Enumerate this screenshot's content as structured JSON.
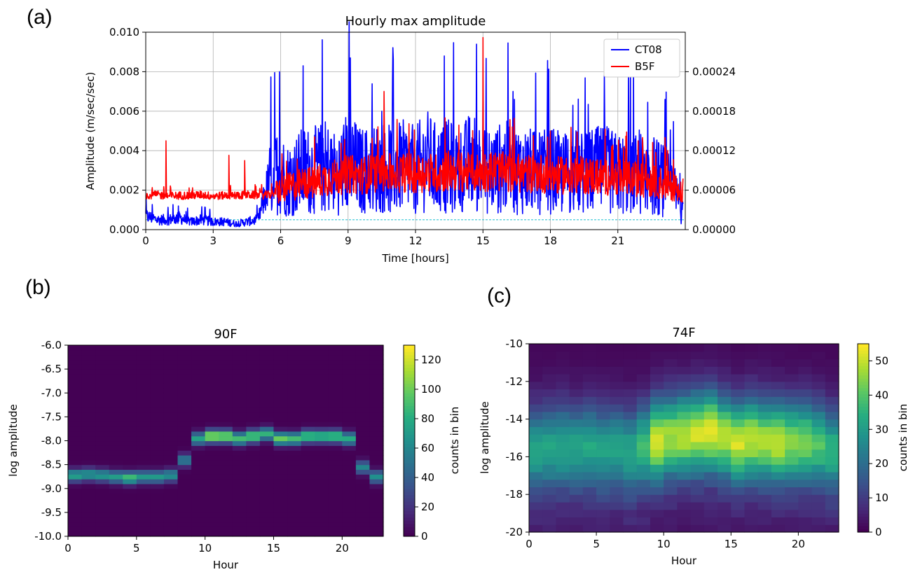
{
  "panels": {
    "a": "(a)",
    "b": "(b)",
    "c": "(c)"
  },
  "chart_data": [
    {
      "type": "line",
      "title": "Hourly max amplitude",
      "xlabel": "Time [hours]",
      "ylabel": "Amplitude (m/sec/sec)",
      "xlim": [
        0,
        24
      ],
      "ylim": [
        0,
        0.01
      ],
      "y2lim": [
        0,
        0.0003
      ],
      "xticks": [
        "0",
        "3",
        "6",
        "9",
        "12",
        "15",
        "18",
        "21"
      ],
      "yticks": [
        "0.000",
        "0.002",
        "0.004",
        "0.006",
        "0.008",
        "0.010"
      ],
      "y2ticks": [
        "0.00000",
        "0.00006",
        "0.00012",
        "0.00018",
        "0.00024"
      ],
      "grid": true,
      "legend": "top-right",
      "threshold_y": 0.0005,
      "series": [
        {
          "name": "CT08",
          "axis": "left",
          "color": "#0000ff",
          "x": [
            0,
            0.5,
            1,
            1.5,
            2,
            2.5,
            3,
            3.5,
            4,
            4.5,
            5,
            5.5,
            5.9,
            6.3,
            7,
            7.5,
            8,
            8.5,
            9,
            9.5,
            10,
            10.5,
            11,
            11.5,
            12,
            12.5,
            13,
            13.5,
            14,
            14.5,
            15,
            15.5,
            16,
            16.5,
            17,
            17.5,
            18,
            18.5,
            19,
            19.5,
            20,
            20.5,
            21,
            21.5,
            22,
            22.5,
            23,
            23.5,
            23.9
          ],
          "y": [
            0.0007,
            0.0005,
            0.0005,
            0.0006,
            0.0004,
            0.0005,
            0.0004,
            0.0004,
            0.0003,
            0.0004,
            0.0005,
            0.0025,
            0.003,
            0.0025,
            0.003,
            0.003,
            0.0032,
            0.0028,
            0.0035,
            0.003,
            0.003,
            0.0032,
            0.003,
            0.0032,
            0.003,
            0.0035,
            0.003,
            0.0032,
            0.003,
            0.0035,
            0.003,
            0.003,
            0.0032,
            0.003,
            0.003,
            0.0028,
            0.003,
            0.0028,
            0.003,
            0.0028,
            0.003,
            0.003,
            0.0028,
            0.0028,
            0.003,
            0.0028,
            0.0025,
            0.002,
            0.0008
          ],
          "spikes": [
            [
              5.95,
              0.008
            ],
            [
              7.0,
              0.0083
            ],
            [
              9.1,
              0.0087
            ],
            [
              10.5,
              0.006
            ],
            [
              15.0,
              0.0065
            ],
            [
              16.4,
              0.0066
            ],
            [
              19.0,
              0.0063
            ],
            [
              23.1,
              0.0066
            ]
          ]
        },
        {
          "name": "B5F",
          "axis": "right",
          "color": "#ff0000",
          "x": [
            0,
            0.5,
            1,
            1.5,
            2,
            2.5,
            3,
            3.5,
            4,
            4.5,
            5,
            5.5,
            6,
            6.5,
            7,
            7.5,
            8,
            8.5,
            9,
            9.5,
            10,
            10.5,
            11,
            11.5,
            12,
            12.5,
            13,
            13.5,
            14,
            14.5,
            15,
            15.5,
            16,
            16.5,
            17,
            17.5,
            18,
            18.5,
            19,
            19.5,
            20,
            20.5,
            21,
            21.5,
            22,
            22.5,
            23,
            23.5,
            23.9
          ],
          "y": [
            5.2e-05,
            5.3e-05,
            5.1e-05,
            5.2e-05,
            5.2e-05,
            5.3e-05,
            5.1e-05,
            5.2e-05,
            5.2e-05,
            5.3e-05,
            5.2e-05,
            5.3e-05,
            6e-05,
            6.6e-05,
            7e-05,
            7.2e-05,
            7.8e-05,
            8e-05,
            8.5e-05,
            8.2e-05,
            8.5e-05,
            8.8e-05,
            8.5e-05,
            8.7e-05,
            8.5e-05,
            8.8e-05,
            8.5e-05,
            9e-05,
            8.8e-05,
            8.6e-05,
            8.8e-05,
            9e-05,
            8.7e-05,
            8.6e-05,
            8.5e-05,
            8.6e-05,
            8.3e-05,
            8.2e-05,
            8.5e-05,
            8.2e-05,
            8.2e-05,
            8e-05,
            8e-05,
            7.8e-05,
            7.6e-05,
            7.4e-05,
            7e-05,
            6.6e-05,
            6e-05
          ],
          "spikes": [
            [
              0.9,
              0.000135
            ],
            [
              3.7,
              0.000113
            ],
            [
              4.4,
              0.000105
            ],
            [
              10.6,
              0.00021
            ],
            [
              15.0,
              0.000292
            ],
            [
              18.0,
              0.00015
            ],
            [
              22.1,
              0.00014
            ],
            [
              23.1,
              0.00014
            ]
          ]
        }
      ]
    },
    {
      "type": "heatmap",
      "title": "90F",
      "xlabel": "Hour",
      "ylabel": "log amplitude",
      "xlim": [
        0,
        23
      ],
      "ylim": [
        -10.0,
        -6.0
      ],
      "xticks": [
        "0",
        "5",
        "10",
        "15",
        "20"
      ],
      "yticks": [
        "-6.0",
        "-6.5",
        "-7.0",
        "-7.5",
        "-8.0",
        "-8.5",
        "-9.0",
        "-9.5",
        "-10.0"
      ],
      "colorbar_label": "counts in bin",
      "colorbar_ticks": [
        "0",
        "20",
        "40",
        "60",
        "80",
        "100",
        "120"
      ],
      "vmax": 130,
      "hours": [
        0,
        1,
        2,
        3,
        4,
        5,
        6,
        7,
        8,
        9,
        10,
        11,
        12,
        13,
        14,
        15,
        16,
        17,
        18,
        19,
        20,
        21,
        22
      ],
      "peak_log_amplitude": [
        -8.72,
        -8.7,
        -8.72,
        -8.75,
        -8.77,
        -8.75,
        -8.75,
        -8.72,
        -8.4,
        -7.95,
        -7.9,
        -7.9,
        -7.95,
        -7.9,
        -7.85,
        -7.95,
        -7.95,
        -7.9,
        -7.9,
        -7.9,
        -7.95,
        -8.55,
        -8.75
      ],
      "peak_counts": [
        75,
        70,
        70,
        72,
        90,
        70,
        70,
        65,
        55,
        75,
        115,
        110,
        90,
        100,
        85,
        100,
        90,
        95,
        90,
        95,
        80,
        60,
        65
      ]
    },
    {
      "type": "heatmap",
      "title": "74F",
      "xlabel": "Hour",
      "ylabel": "log amplitude",
      "xlim": [
        0,
        23
      ],
      "ylim": [
        -20,
        -10
      ],
      "xticks": [
        "0",
        "5",
        "10",
        "15",
        "20"
      ],
      "yticks": [
        "-10",
        "-12",
        "-14",
        "-16",
        "-18",
        "-20"
      ],
      "colorbar_label": "counts in bin",
      "colorbar_ticks": [
        "0",
        "10",
        "20",
        "30",
        "40",
        "50"
      ],
      "vmax": 55,
      "hours": [
        0,
        1,
        2,
        3,
        4,
        5,
        6,
        7,
        8,
        9,
        10,
        11,
        12,
        13,
        14,
        15,
        16,
        17,
        18,
        19,
        20,
        21,
        22
      ],
      "peak_log_amplitude": [
        -15.6,
        -15.5,
        -15.4,
        -15.5,
        -15.4,
        -15.6,
        -15.5,
        -15.7,
        -15.4,
        -15.1,
        -14.9,
        -14.8,
        -14.7,
        -14.6,
        -14.9,
        -15.2,
        -15.0,
        -15.1,
        -15.2,
        -15.2,
        -15.2,
        -15.3,
        -15.6
      ],
      "peak_counts": [
        24,
        24,
        25,
        24,
        25,
        24,
        24,
        25,
        30,
        45,
        40,
        42,
        44,
        46,
        42,
        44,
        43,
        40,
        42,
        38,
        36,
        32,
        28
      ]
    }
  ]
}
